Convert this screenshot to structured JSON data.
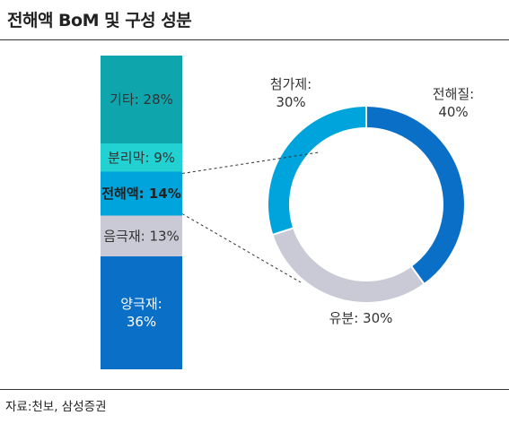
{
  "title": "전해액 BoM 및 구성 성분",
  "source": "자료:천보, 삼성증권",
  "chart_data": [
    {
      "type": "bar",
      "stacked": true,
      "categories": [
        "양극재",
        "음극재",
        "전해액",
        "분리막",
        "기타"
      ],
      "labels": [
        "양극재:\n36%",
        "음극재: 13%",
        "전해액: 14%",
        "분리막: 9%",
        "기타: 28%"
      ],
      "values": [
        36,
        13,
        14,
        9,
        28
      ],
      "colors": [
        "#0a6fc7",
        "#c9cad6",
        "#00a4dc",
        "#22d2d2",
        "#0fa5ac"
      ],
      "label_colors": [
        "#ffffff",
        "#333333",
        "#222222",
        "#333333",
        "#333333"
      ],
      "highlight": "전해액"
    },
    {
      "type": "pie",
      "donut": true,
      "categories": [
        "전해질",
        "유분",
        "첨가제"
      ],
      "labels": [
        "전해질:\n40%",
        "유분: 30%",
        "첨가제:\n30%"
      ],
      "values": [
        40,
        30,
        30
      ],
      "colors": [
        "#0a6fc7",
        "#c9cad6",
        "#00a4dc"
      ]
    }
  ]
}
